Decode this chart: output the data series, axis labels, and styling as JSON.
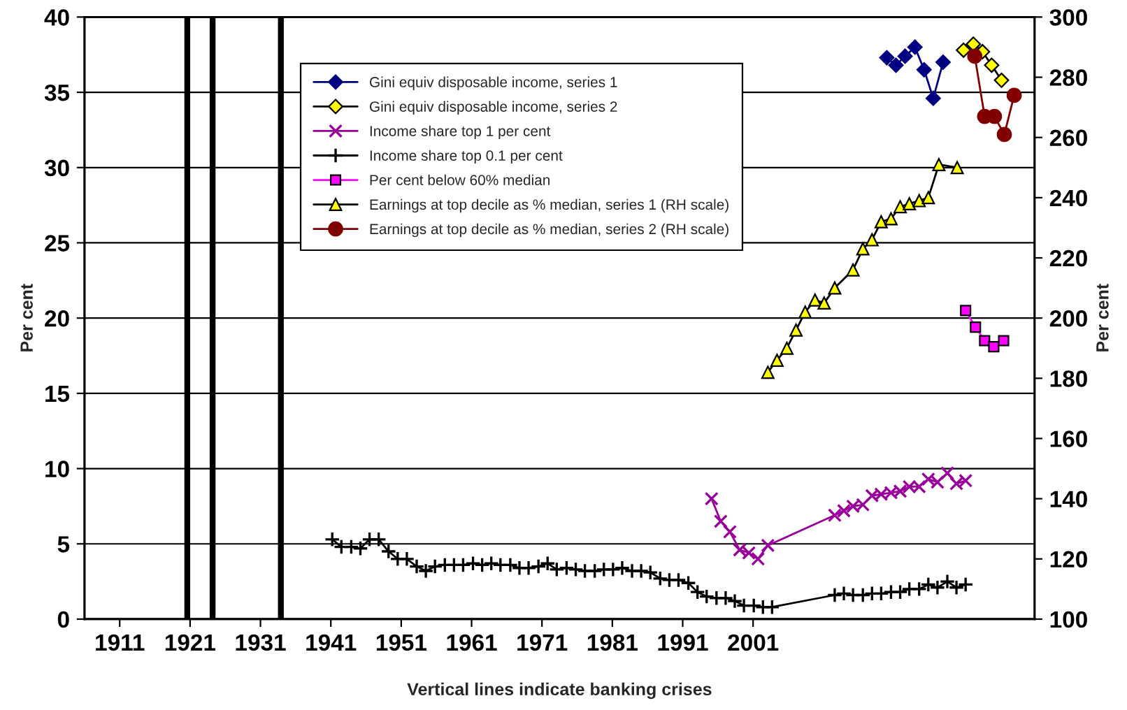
{
  "chart_data": {
    "type": "line",
    "xlabel": "Vertical lines indicate banking crises",
    "ylabel": "Per cent",
    "y2label": "Per cent",
    "xlim": [
      1906,
      2041
    ],
    "xticks": [
      1911,
      1921,
      1931,
      1941,
      1951,
      1961,
      1971,
      1981,
      1991,
      2001
    ],
    "ylim": [
      0,
      40
    ],
    "yticks": [
      0,
      5,
      10,
      15,
      20,
      25,
      30,
      35,
      40
    ],
    "y2lim": [
      100,
      300
    ],
    "y2ticks": [
      100,
      120,
      140,
      160,
      180,
      200,
      220,
      240,
      260,
      280,
      300
    ],
    "grid": "y",
    "legend": "top",
    "ref_lines": [
      {
        "axis": "x",
        "value": 1920.6,
        "color": "#000000"
      },
      {
        "axis": "x",
        "value": 1924.2,
        "color": "#000000"
      },
      {
        "axis": "x",
        "value": 1933.9,
        "color": "#000000"
      }
    ],
    "series": [
      {
        "name": "Gini equiv disposable income, series 1",
        "color": "#000080",
        "marker": "diamond",
        "x": [
          2020.0,
          2021.3,
          2022.6,
          2024.0,
          2025.3,
          2026.6,
          2028.0
        ],
        "values": [
          37.3,
          36.8,
          37.4,
          38.0,
          36.5,
          34.6,
          37.0
        ]
      },
      {
        "name": "Gini equiv disposable income, series 2",
        "color": "#ffff00",
        "marker": "diamond",
        "x": [
          2030.9,
          2032.3,
          2033.6,
          2034.9,
          2036.3
        ],
        "values": [
          37.8,
          38.2,
          37.7,
          36.8,
          35.8
        ]
      },
      {
        "name": "Income share top 1 per cent",
        "color": "#990099",
        "marker": "cross",
        "x": [
          1995.1,
          1996.4,
          1997.7,
          1999.1,
          2000.4,
          2001.7,
          2003.1,
          2012.6,
          2013.9,
          2015.2,
          2016.6,
          2017.9,
          2019.2,
          2020.6,
          2021.9,
          2023.2,
          2024.6,
          2025.9,
          2027.2,
          2028.6,
          2029.9,
          2031.2
        ],
        "values": [
          8.0,
          6.5,
          5.8,
          4.6,
          4.4,
          4.0,
          4.9,
          6.9,
          7.2,
          7.5,
          7.6,
          8.2,
          8.3,
          8.4,
          8.5,
          8.8,
          8.8,
          9.3,
          9.1,
          9.7,
          9.0,
          9.2
        ]
      },
      {
        "name": "Income share top 0.1 per cent",
        "color": "#000000",
        "marker": "plus",
        "x": [
          1941.2,
          1942.5,
          1943.9,
          1945.2,
          1946.5,
          1947.8,
          1949.2,
          1950.5,
          1951.8,
          1953.2,
          1954.5,
          1955.8,
          1957.2,
          1958.5,
          1959.8,
          1961.2,
          1962.5,
          1963.8,
          1965.1,
          1966.5,
          1967.8,
          1969.1,
          1970.5,
          1971.8,
          1973.1,
          1974.5,
          1975.8,
          1977.1,
          1978.5,
          1979.8,
          1981.1,
          1982.4,
          1983.8,
          1985.1,
          1986.4,
          1987.8,
          1989.1,
          1990.4,
          1991.8,
          1993.1,
          1994.4,
          1995.8,
          1997.1,
          1998.4,
          1999.7,
          2001.1,
          2002.4,
          2003.7,
          2012.6,
          2013.9,
          2015.2,
          2016.6,
          2017.9,
          2019.2,
          2020.6,
          2021.9,
          2023.2,
          2024.6,
          2025.9,
          2027.2,
          2028.6,
          2029.9,
          2031.2
        ],
        "values": [
          5.3,
          4.8,
          4.8,
          4.7,
          5.3,
          5.3,
          4.5,
          4.0,
          4.0,
          3.5,
          3.2,
          3.5,
          3.6,
          3.6,
          3.6,
          3.7,
          3.6,
          3.7,
          3.6,
          3.6,
          3.4,
          3.4,
          3.5,
          3.7,
          3.3,
          3.4,
          3.3,
          3.2,
          3.2,
          3.3,
          3.3,
          3.4,
          3.2,
          3.2,
          3.1,
          2.7,
          2.6,
          2.6,
          2.4,
          1.8,
          1.5,
          1.4,
          1.4,
          1.2,
          0.9,
          0.9,
          0.8,
          0.8,
          1.6,
          1.7,
          1.6,
          1.6,
          1.7,
          1.7,
          1.8,
          1.8,
          2.0,
          2.0,
          2.3,
          2.1,
          2.5,
          2.1,
          2.3
        ]
      },
      {
        "name": "Per cent below 60% median",
        "color": "#ff00ff",
        "marker": "square",
        "x": [
          2031.2,
          2032.6,
          2033.9,
          2035.2,
          2036.6
        ],
        "values": [
          20.5,
          19.4,
          18.5,
          18.1,
          18.5
        ]
      },
      {
        "name": "Earnings at top decile as % median, series 1 (RH scale)",
        "color": "#ffff00",
        "marker": "triangle",
        "axis": "y2",
        "x": [
          2003.1,
          2004.4,
          2005.8,
          2007.1,
          2008.4,
          2009.8,
          2011.1,
          2012.6,
          2015.2,
          2016.6,
          2017.9,
          2019.2,
          2020.6,
          2021.9,
          2023.2,
          2024.6,
          2025.9,
          2027.4,
          2030.0
        ],
        "values": [
          182,
          186,
          190,
          196,
          202,
          206,
          205,
          210,
          216,
          223,
          226,
          232,
          233,
          237,
          238,
          239,
          240,
          251,
          250
        ]
      },
      {
        "name": "Earnings at top decile as % median, series 2 (RH scale)",
        "color": "#800000",
        "marker": "circle",
        "axis": "y2",
        "x": [
          2032.5,
          2033.9,
          2035.3,
          2036.7,
          2038.1
        ],
        "values": [
          287,
          267,
          267,
          261,
          274
        ]
      }
    ]
  }
}
